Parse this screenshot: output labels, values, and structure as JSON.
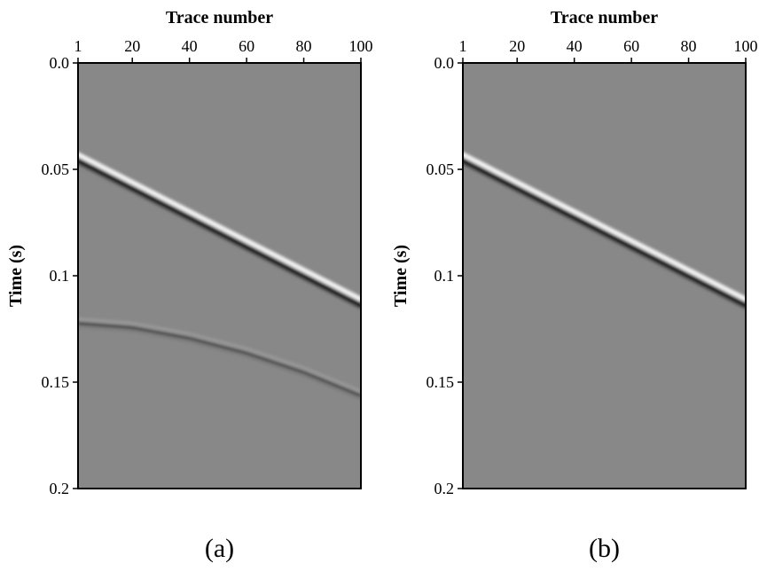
{
  "chart_data": [
    {
      "type": "heatmap",
      "panel_label": "(a)",
      "xlabel": "Trace number",
      "ylabel": "Time (s)",
      "xlim": [
        1,
        100
      ],
      "ylim": [
        0.0,
        0.2
      ],
      "x_ticks": [
        {
          "value": 1,
          "label": "1"
        },
        {
          "value": 20,
          "label": "20"
        },
        {
          "value": 40,
          "label": "40"
        },
        {
          "value": 60,
          "label": "60"
        },
        {
          "value": 80,
          "label": "80"
        },
        {
          "value": 100,
          "label": "100"
        }
      ],
      "y_ticks": [
        {
          "value": 0.0,
          "label": "0.0"
        },
        {
          "value": 0.05,
          "label": "0.05"
        },
        {
          "value": 0.1,
          "label": "0.1"
        },
        {
          "value": 0.15,
          "label": "0.15"
        },
        {
          "value": 0.2,
          "label": "0.2"
        }
      ],
      "background_color": "#888888",
      "events": [
        {
          "shape": "linear",
          "strength": 1.0,
          "points": [
            [
              1,
              0.045
            ],
            [
              100,
              0.113
            ]
          ]
        },
        {
          "shape": "curved",
          "strength": 0.35,
          "points": [
            [
              1,
              0.122
            ],
            [
              20,
              0.124
            ],
            [
              40,
              0.129
            ],
            [
              60,
              0.136
            ],
            [
              80,
              0.145
            ],
            [
              100,
              0.156
            ]
          ]
        }
      ]
    },
    {
      "type": "heatmap",
      "panel_label": "(b)",
      "xlabel": "Trace number",
      "ylabel": "Time (s)",
      "xlim": [
        1,
        100
      ],
      "ylim": [
        0.0,
        0.2
      ],
      "x_ticks": [
        {
          "value": 1,
          "label": "1"
        },
        {
          "value": 20,
          "label": "20"
        },
        {
          "value": 40,
          "label": "40"
        },
        {
          "value": 60,
          "label": "60"
        },
        {
          "value": 80,
          "label": "80"
        },
        {
          "value": 100,
          "label": "100"
        }
      ],
      "y_ticks": [
        {
          "value": 0.0,
          "label": "0.0"
        },
        {
          "value": 0.05,
          "label": "0.05"
        },
        {
          "value": 0.1,
          "label": "0.1"
        },
        {
          "value": 0.15,
          "label": "0.15"
        },
        {
          "value": 0.2,
          "label": "0.2"
        }
      ],
      "background_color": "#888888",
      "events": [
        {
          "shape": "linear",
          "strength": 1.0,
          "points": [
            [
              1,
              0.045
            ],
            [
              100,
              0.113
            ]
          ]
        }
      ]
    }
  ]
}
